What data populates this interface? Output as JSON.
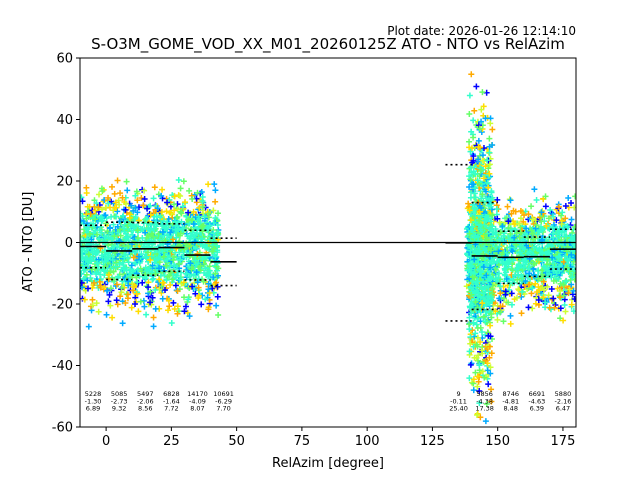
{
  "plot_date": "Plot date: 2026-01-26 12:14:10",
  "chart_data": {
    "type": "scatter",
    "title": "S-O3M_GOME_VOD_XX_M01_20260125Z ATO - NTO vs RelAzim",
    "xlabel": "RelAzim [degree]",
    "ylabel": "ATO - NTO [DU]",
    "xlim": [
      -10,
      180
    ],
    "ylim": [
      -60,
      60
    ],
    "xticks": [
      0,
      25,
      50,
      75,
      100,
      125,
      150,
      175
    ],
    "yticks": [
      -60,
      -40,
      -20,
      0,
      20,
      40,
      60
    ],
    "grid": false,
    "colors": [
      "#0000ff",
      "#00aaff",
      "#33ffcc",
      "#66ff66",
      "#ccff33",
      "#ffdd00",
      "#ffaa00"
    ],
    "zero_line": 0,
    "bins": [
      {
        "x0": -10,
        "x1": 0,
        "mean": -1.3,
        "std": 6.89
      },
      {
        "x0": 0,
        "x1": 10,
        "mean": -2.73,
        "std": 9.32
      },
      {
        "x0": 10,
        "x1": 20,
        "mean": -2.06,
        "std": 8.56
      },
      {
        "x0": 20,
        "x1": 30,
        "mean": -1.64,
        "std": 7.72
      },
      {
        "x0": 30,
        "x1": 40,
        "mean": -4.09,
        "std": 8.07
      },
      {
        "x0": 40,
        "x1": 50,
        "mean": -6.29,
        "std": 7.7
      },
      {
        "x0": 130,
        "x1": 140,
        "mean": -0.11,
        "std": 25.4
      },
      {
        "x0": 140,
        "x1": 150,
        "mean": -4.38,
        "std": 17.38
      },
      {
        "x0": 150,
        "x1": 160,
        "mean": -4.81,
        "std": 8.48
      },
      {
        "x0": 160,
        "x1": 170,
        "mean": -4.63,
        "std": 6.39
      },
      {
        "x0": 170,
        "x1": 180,
        "mean": -2.16,
        "std": 6.47
      }
    ],
    "annotations": [
      {
        "x": -5,
        "count": "5228",
        "mean": "-1.30",
        "std": "6.89"
      },
      {
        "x": 5,
        "count": "5085",
        "mean": "-2.73",
        "std": "9.32"
      },
      {
        "x": 15,
        "count": "5497",
        "mean": "-2.06",
        "std": "8.56"
      },
      {
        "x": 25,
        "count": "6828",
        "mean": "-1.64",
        "std": "7.72"
      },
      {
        "x": 35,
        "count": "14170",
        "mean": "-4.09",
        "std": "8.07"
      },
      {
        "x": 45,
        "count": "10691",
        "mean": "-6.29",
        "std": "7.70"
      },
      {
        "x": 135,
        "count": "9",
        "mean": "-0.11",
        "std": "25.40"
      },
      {
        "x": 145,
        "count": "5856",
        "mean": "-4.38",
        "std": "17.38"
      },
      {
        "x": 155,
        "count": "8746",
        "mean": "-4.81",
        "std": "8.48"
      },
      {
        "x": 165,
        "count": "6691",
        "mean": "-4.63",
        "std": "6.39"
      },
      {
        "x": 175,
        "count": "5880",
        "mean": "-2.16",
        "std": "6.47"
      }
    ]
  }
}
